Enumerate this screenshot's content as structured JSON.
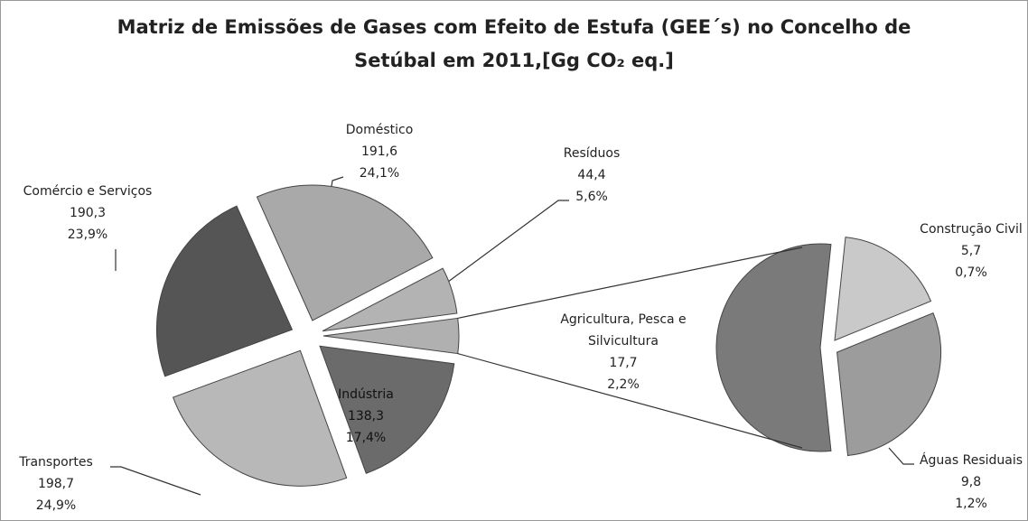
{
  "chart_data": {
    "type": "pie-of-pie",
    "title": [
      "Matriz de Emissões de Gases com Efeito de Estufa (GEE´s) no Concelho de",
      "Setúbal em 2011,[Gg CO₂ eq.]"
    ],
    "categories": [
      "Doméstico",
      "Resíduos",
      "Indústria",
      "Transportes",
      "Comércio e Serviços"
    ],
    "values": [
      191.6,
      44.4,
      138.3,
      198.7,
      190.3
    ],
    "value_labels": [
      "191,6",
      "44,4",
      "138,3",
      "198,7",
      "190,3"
    ],
    "percents": [
      24.1,
      5.6,
      17.4,
      24.9,
      23.9
    ],
    "percent_labels": [
      "24,1%",
      "5,6%",
      "17,4%",
      "24,9%",
      "23,9%"
    ],
    "colors": [
      "#a9a9a9",
      "#b3b3b3",
      "#6b6b6b",
      "#b8b8b8",
      "#555555"
    ],
    "secondary": {
      "categories": [
        "Agricultura, Pesca e Silvicultura",
        "Construção Civil",
        "Águas Residuais"
      ],
      "values": [
        17.7,
        5.7,
        9.8
      ],
      "value_labels": [
        "17,7",
        "5,7",
        "9,8"
      ],
      "percents": [
        2.2,
        0.7,
        1.2
      ],
      "percent_labels": [
        "2,2%",
        "0,7%",
        "1,2%"
      ],
      "colors": [
        "#7a7a7a",
        "#c9c9c9",
        "#9c9c9c"
      ]
    }
  }
}
